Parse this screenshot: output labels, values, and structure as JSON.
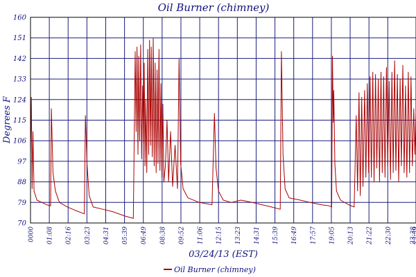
{
  "chart_data": {
    "type": "line",
    "title": "Oil Burner (chimney)",
    "xlabel": "03/24/13 (EST)",
    "ylabel": "Degrees F",
    "ylim": [
      70,
      160
    ],
    "yticks": [
      70,
      79,
      88,
      97,
      106,
      115,
      124,
      133,
      142,
      151,
      160
    ],
    "xticks": [
      "0000",
      "01:08",
      "02:16",
      "03:23",
      "04:31",
      "05:39",
      "06:49",
      "08:38",
      "09:52",
      "11:06",
      "12:15",
      "13:23",
      "14:31",
      "15:39",
      "16:49",
      "17:57",
      "19:05",
      "20:13",
      "21:22",
      "22:30",
      "23:38",
      "23:59"
    ],
    "grid": true,
    "legend_position": "bottom-center",
    "colors": {
      "series": "#aa0000",
      "grid": "#1c1c7c",
      "text": "#101080",
      "frame": "#000000"
    },
    "series": [
      {
        "name": "Oil Burner (chimney)",
        "x_range_hours": [
          0,
          24
        ],
        "points": [
          [
            0.0,
            100
          ],
          [
            0.05,
            125
          ],
          [
            0.1,
            85
          ],
          [
            0.15,
            110
          ],
          [
            0.22,
            84
          ],
          [
            0.4,
            80
          ],
          [
            0.7,
            79
          ],
          [
            1.0,
            78
          ],
          [
            1.25,
            77.5
          ],
          [
            1.3,
            120
          ],
          [
            1.4,
            92
          ],
          [
            1.55,
            84
          ],
          [
            1.8,
            79
          ],
          [
            2.3,
            77
          ],
          [
            2.8,
            75.5
          ],
          [
            3.35,
            74
          ],
          [
            3.42,
            117
          ],
          [
            3.52,
            96
          ],
          [
            3.65,
            82
          ],
          [
            3.9,
            77
          ],
          [
            4.5,
            76
          ],
          [
            5.1,
            75
          ],
          [
            5.9,
            73
          ],
          [
            6.4,
            72
          ],
          [
            6.52,
            145
          ],
          [
            6.58,
            110
          ],
          [
            6.63,
            147
          ],
          [
            6.69,
            100
          ],
          [
            6.74,
            143
          ],
          [
            6.8,
            106
          ],
          [
            6.86,
            148
          ],
          [
            6.92,
            98
          ],
          [
            6.98,
            130
          ],
          [
            7.03,
            105
          ],
          [
            7.08,
            140
          ],
          [
            7.13,
            95
          ],
          [
            7.18,
            124
          ],
          [
            7.24,
            92
          ],
          [
            7.3,
            146
          ],
          [
            7.36,
            100
          ],
          [
            7.41,
            150
          ],
          [
            7.47,
            104
          ],
          [
            7.52,
            147
          ],
          [
            7.58,
            99
          ],
          [
            7.64,
            151
          ],
          [
            7.7,
            95
          ],
          [
            7.76,
            140
          ],
          [
            7.82,
            92
          ],
          [
            7.88,
            137
          ],
          [
            7.94,
            96
          ],
          [
            8.0,
            146
          ],
          [
            8.06,
            93
          ],
          [
            8.12,
            131
          ],
          [
            8.18,
            90
          ],
          [
            8.24,
            122
          ],
          [
            8.3,
            88
          ],
          [
            8.4,
            95
          ],
          [
            8.5,
            115
          ],
          [
            8.6,
            88
          ],
          [
            8.72,
            110
          ],
          [
            8.85,
            86
          ],
          [
            9.0,
            104
          ],
          [
            9.15,
            85
          ],
          [
            9.25,
            142
          ],
          [
            9.35,
            96
          ],
          [
            9.5,
            85
          ],
          [
            9.8,
            81
          ],
          [
            10.5,
            79
          ],
          [
            11.3,
            78
          ],
          [
            11.45,
            118
          ],
          [
            11.55,
            94
          ],
          [
            11.7,
            84
          ],
          [
            12.0,
            80
          ],
          [
            12.5,
            79
          ],
          [
            13.1,
            80
          ],
          [
            13.8,
            79
          ],
          [
            14.4,
            78
          ],
          [
            15.0,
            77
          ],
          [
            15.55,
            76
          ],
          [
            15.62,
            145
          ],
          [
            15.72,
            100
          ],
          [
            15.85,
            85
          ],
          [
            16.1,
            81
          ],
          [
            16.8,
            80
          ],
          [
            17.4,
            79
          ],
          [
            18.1,
            78
          ],
          [
            18.6,
            77.5
          ],
          [
            18.75,
            77
          ],
          [
            18.8,
            143
          ],
          [
            18.85,
            114
          ],
          [
            18.88,
            128
          ],
          [
            18.95,
            96
          ],
          [
            19.05,
            84
          ],
          [
            19.3,
            80
          ],
          [
            19.8,
            78
          ],
          [
            20.15,
            77
          ],
          [
            20.28,
            117
          ],
          [
            20.36,
            84
          ],
          [
            20.45,
            127
          ],
          [
            20.53,
            82
          ],
          [
            20.62,
            125
          ],
          [
            20.7,
            86
          ],
          [
            20.8,
            128
          ],
          [
            20.88,
            90
          ],
          [
            20.97,
            131
          ],
          [
            21.05,
            92
          ],
          [
            21.14,
            134
          ],
          [
            21.22,
            90
          ],
          [
            21.31,
            136
          ],
          [
            21.39,
            88
          ],
          [
            21.48,
            135
          ],
          [
            21.56,
            94
          ],
          [
            21.65,
            133
          ],
          [
            21.73,
            88
          ],
          [
            21.82,
            136
          ],
          [
            21.9,
            92
          ],
          [
            21.99,
            134
          ],
          [
            22.07,
            90
          ],
          [
            22.16,
            138
          ],
          [
            22.24,
            95
          ],
          [
            22.33,
            132
          ],
          [
            22.41,
            89
          ],
          [
            22.5,
            136
          ],
          [
            22.58,
            92
          ],
          [
            22.67,
            141
          ],
          [
            22.75,
            93
          ],
          [
            22.84,
            135
          ],
          [
            22.92,
            88
          ],
          [
            23.01,
            133
          ],
          [
            23.09,
            95
          ],
          [
            23.18,
            139
          ],
          [
            23.26,
            92
          ],
          [
            23.35,
            130
          ],
          [
            23.43,
            90
          ],
          [
            23.52,
            136
          ],
          [
            23.6,
            92
          ],
          [
            23.69,
            134
          ],
          [
            23.77,
            95
          ],
          [
            23.86,
            120
          ],
          [
            23.93,
            100
          ],
          [
            24.0,
            118
          ]
        ]
      }
    ]
  }
}
